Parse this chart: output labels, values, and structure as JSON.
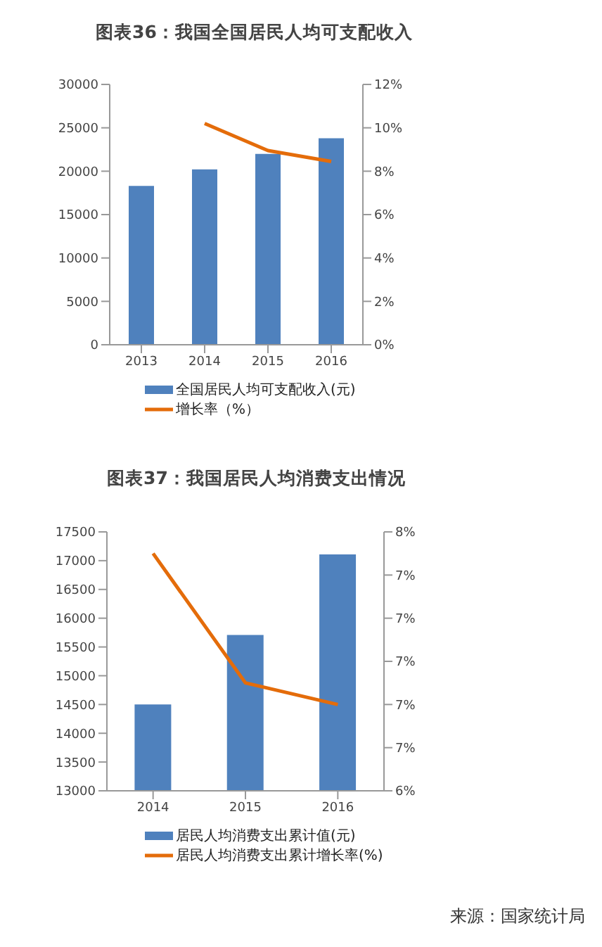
{
  "chart_data": [
    {
      "type": "bar",
      "title": "图表36：我国全国居民人均可支配收入",
      "categories": [
        "2013",
        "2014",
        "2015",
        "2016"
      ],
      "series": [
        {
          "name": "全国居民人均可支配收入(元)",
          "color": "#4f81bd",
          "values": [
            18300,
            20200,
            22000,
            23800
          ]
        },
        {
          "name": "增长率（%）",
          "type": "line",
          "axis": "y2",
          "color": "#e46c0a",
          "values": [
            null,
            10.2,
            8.95,
            8.45
          ]
        }
      ],
      "ylim": [
        0,
        30000
      ],
      "yticks": [
        0,
        5000,
        10000,
        15000,
        20000,
        25000,
        30000
      ],
      "y2lim": [
        0,
        12
      ],
      "y2ticks": [
        {
          "value": 0,
          "label": "0%"
        },
        {
          "value": 2,
          "label": "2%"
        },
        {
          "value": 4,
          "label": "4%"
        },
        {
          "value": 6,
          "label": "6%"
        },
        {
          "value": 8,
          "label": "8%"
        },
        {
          "value": 10,
          "label": "10%"
        },
        {
          "value": 12,
          "label": "12%"
        }
      ],
      "grid": false,
      "legend": "bottom",
      "marker": "none"
    },
    {
      "type": "bar",
      "title": "图表37：我国居民人均消费支出情况",
      "categories": [
        "2014",
        "2015",
        "2016"
      ],
      "series": [
        {
          "name": "居民人均消费支出累计值(元)",
          "color": "#4f81bd",
          "values": [
            14500,
            15710,
            17110
          ]
        },
        {
          "name": "居民人均消费支出累计增长率(%)",
          "type": "line",
          "axis": "y2",
          "color": "#e46c0a",
          "values": [
            7.5,
            6.9,
            6.8
          ]
        }
      ],
      "ylim": [
        13000,
        17500
      ],
      "yticks": [
        13000,
        13500,
        14000,
        14500,
        15000,
        15500,
        16000,
        16500,
        17000,
        17500
      ],
      "y2lim": [
        6.4,
        7.6
      ],
      "y2ticks": [
        {
          "value": 6.4,
          "label": "6%"
        },
        {
          "value": 6.6,
          "label": "7%"
        },
        {
          "value": 6.8,
          "label": "7%"
        },
        {
          "value": 7,
          "label": "7%"
        },
        {
          "value": 7.2,
          "label": "7%"
        },
        {
          "value": 7.4,
          "label": "7%"
        },
        {
          "value": 7.6,
          "label": "8%"
        }
      ],
      "grid": false,
      "legend": "bottom",
      "marker": "none",
      "annotations": [
        "来源：国家统计局"
      ]
    }
  ]
}
